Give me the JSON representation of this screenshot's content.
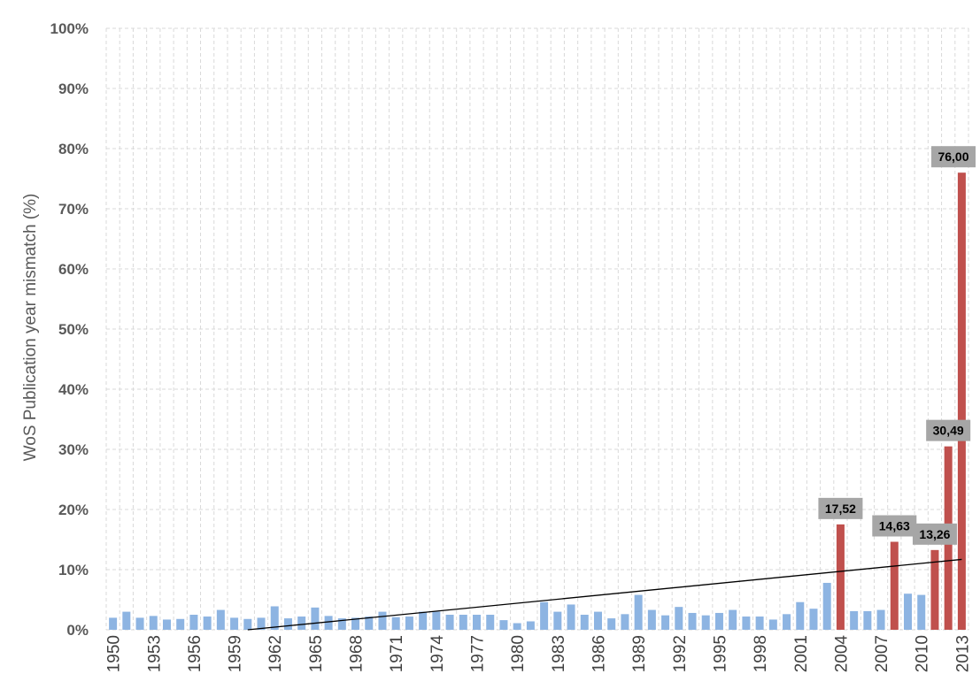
{
  "chart_data": {
    "type": "bar",
    "title": "",
    "xlabel": "",
    "ylabel": "WoS Publication year mismatch (%)",
    "ylim": [
      0,
      100
    ],
    "y_ticks": [
      "0%",
      "10%",
      "20%",
      "30%",
      "40%",
      "50%",
      "60%",
      "70%",
      "80%",
      "90%",
      "100%"
    ],
    "x_tick_labels": [
      "1950",
      "1953",
      "1956",
      "1959",
      "1962",
      "1965",
      "1968",
      "1971",
      "1974",
      "1977",
      "1980",
      "1983",
      "1986",
      "1989",
      "1992",
      "1995",
      "1998",
      "2001",
      "2004",
      "2007",
      "2010",
      "2013"
    ],
    "grid": true,
    "categories": [
      "1950",
      "1951",
      "1952",
      "1953",
      "1954",
      "1955",
      "1956",
      "1957",
      "1958",
      "1959",
      "1960",
      "1961",
      "1962",
      "1963",
      "1964",
      "1965",
      "1966",
      "1967",
      "1968",
      "1969",
      "1970",
      "1971",
      "1972",
      "1973",
      "1974",
      "1975",
      "1976",
      "1977",
      "1978",
      "1979",
      "1980",
      "1981",
      "1982",
      "1983",
      "1984",
      "1985",
      "1986",
      "1987",
      "1988",
      "1989",
      "1990",
      "1991",
      "1992",
      "1993",
      "1994",
      "1995",
      "1996",
      "1997",
      "1998",
      "1999",
      "2000",
      "2001",
      "2002",
      "2003",
      "2004",
      "2005",
      "2006",
      "2007",
      "2008",
      "2009",
      "2010",
      "2011",
      "2012",
      "2013"
    ],
    "values": [
      2.0,
      3.0,
      2.0,
      2.3,
      1.7,
      1.8,
      2.5,
      2.2,
      3.3,
      2.0,
      1.8,
      2.0,
      3.9,
      1.9,
      2.2,
      3.7,
      2.3,
      1.9,
      2.0,
      2.2,
      3.0,
      2.1,
      2.2,
      3.0,
      3.0,
      2.5,
      2.5,
      2.5,
      2.5,
      1.6,
      1.1,
      1.4,
      4.6,
      3.0,
      4.2,
      2.5,
      3.0,
      1.9,
      2.6,
      5.8,
      3.3,
      2.4,
      3.8,
      2.8,
      2.4,
      2.8,
      3.3,
      2.2,
      2.2,
      1.7,
      2.6,
      4.6,
      3.5,
      7.8,
      17.52,
      3.1,
      3.1,
      3.3,
      14.63,
      6.0,
      5.8,
      13.26,
      30.49,
      76.0
    ],
    "highlighted": [
      "2004",
      "2008",
      "2011",
      "2012",
      "2013"
    ],
    "data_labels": [
      {
        "category": "2004",
        "text": "17,52"
      },
      {
        "category": "2008",
        "text": "14,63"
      },
      {
        "category": "2011",
        "text": "13,26"
      },
      {
        "category": "2012",
        "text": "30,49"
      },
      {
        "category": "2013",
        "text": "76,00"
      }
    ],
    "trendline": {
      "type": "linear",
      "from": {
        "x": "1960",
        "y": 0.0
      },
      "to": {
        "x": "2013",
        "y": 11.7
      }
    },
    "colors": {
      "bar": "#8db4e2",
      "highlight": "#c0504d",
      "trend": "#000000",
      "label_bg": "#a6a6a6",
      "grid": "#d9d9d9"
    }
  }
}
